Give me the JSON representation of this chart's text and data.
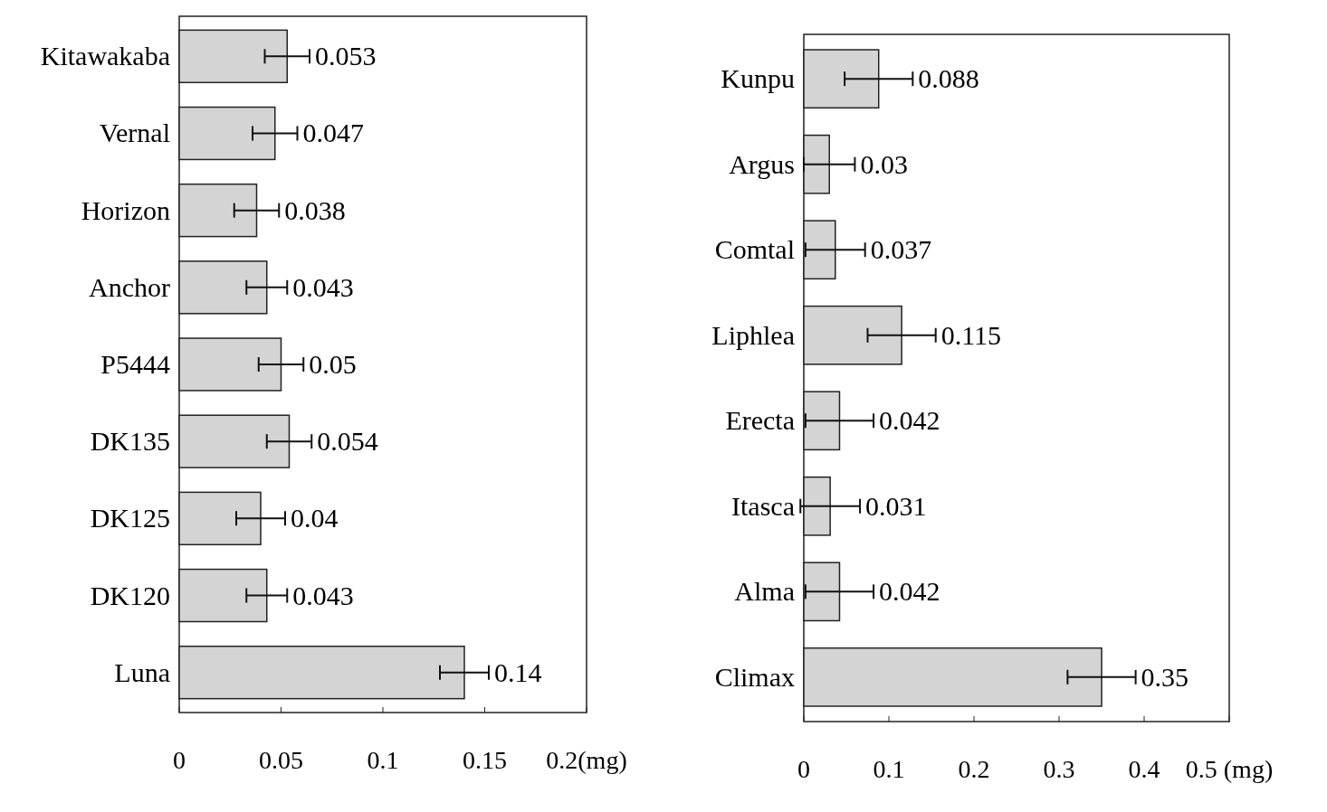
{
  "chart_data": [
    {
      "type": "bar",
      "orientation": "horizontal",
      "categories": [
        "Kitawakaba",
        "Vernal",
        "Horizon",
        "Anchor",
        "P5444",
        "DK135",
        "DK125",
        "DK120",
        "Luna"
      ],
      "values": [
        0.053,
        0.047,
        0.038,
        0.043,
        0.05,
        0.054,
        0.04,
        0.043,
        0.14
      ],
      "errors": [
        0.011,
        0.011,
        0.011,
        0.01,
        0.011,
        0.011,
        0.012,
        0.01,
        0.012
      ],
      "color": "#d4d4d4",
      "xlim": [
        0,
        0.2
      ],
      "xticks": [
        0,
        0.05,
        0.1,
        0.15,
        {
          "value": 0.2,
          "label": "0.2(mg)"
        }
      ],
      "data_labels": true,
      "grid": false
    },
    {
      "type": "bar",
      "orientation": "horizontal",
      "categories": [
        "Kunpu",
        "Argus",
        "Comtal",
        "Liphlea",
        "Erecta",
        "Itasca",
        "Alma",
        "Climax"
      ],
      "values": [
        0.088,
        0.03,
        0.037,
        0.115,
        0.042,
        0.031,
        0.042,
        0.35
      ],
      "errors": [
        0.04,
        0.03,
        0.035,
        0.04,
        0.04,
        0.035,
        0.04,
        0.04
      ],
      "color": "#d4d4d4",
      "xlim": [
        0,
        0.5
      ],
      "xticks": [
        0,
        0.1,
        0.2,
        0.3,
        0.4,
        {
          "value": 0.5,
          "label": "0.5 (mg)"
        }
      ],
      "data_labels": true,
      "grid": false
    }
  ]
}
